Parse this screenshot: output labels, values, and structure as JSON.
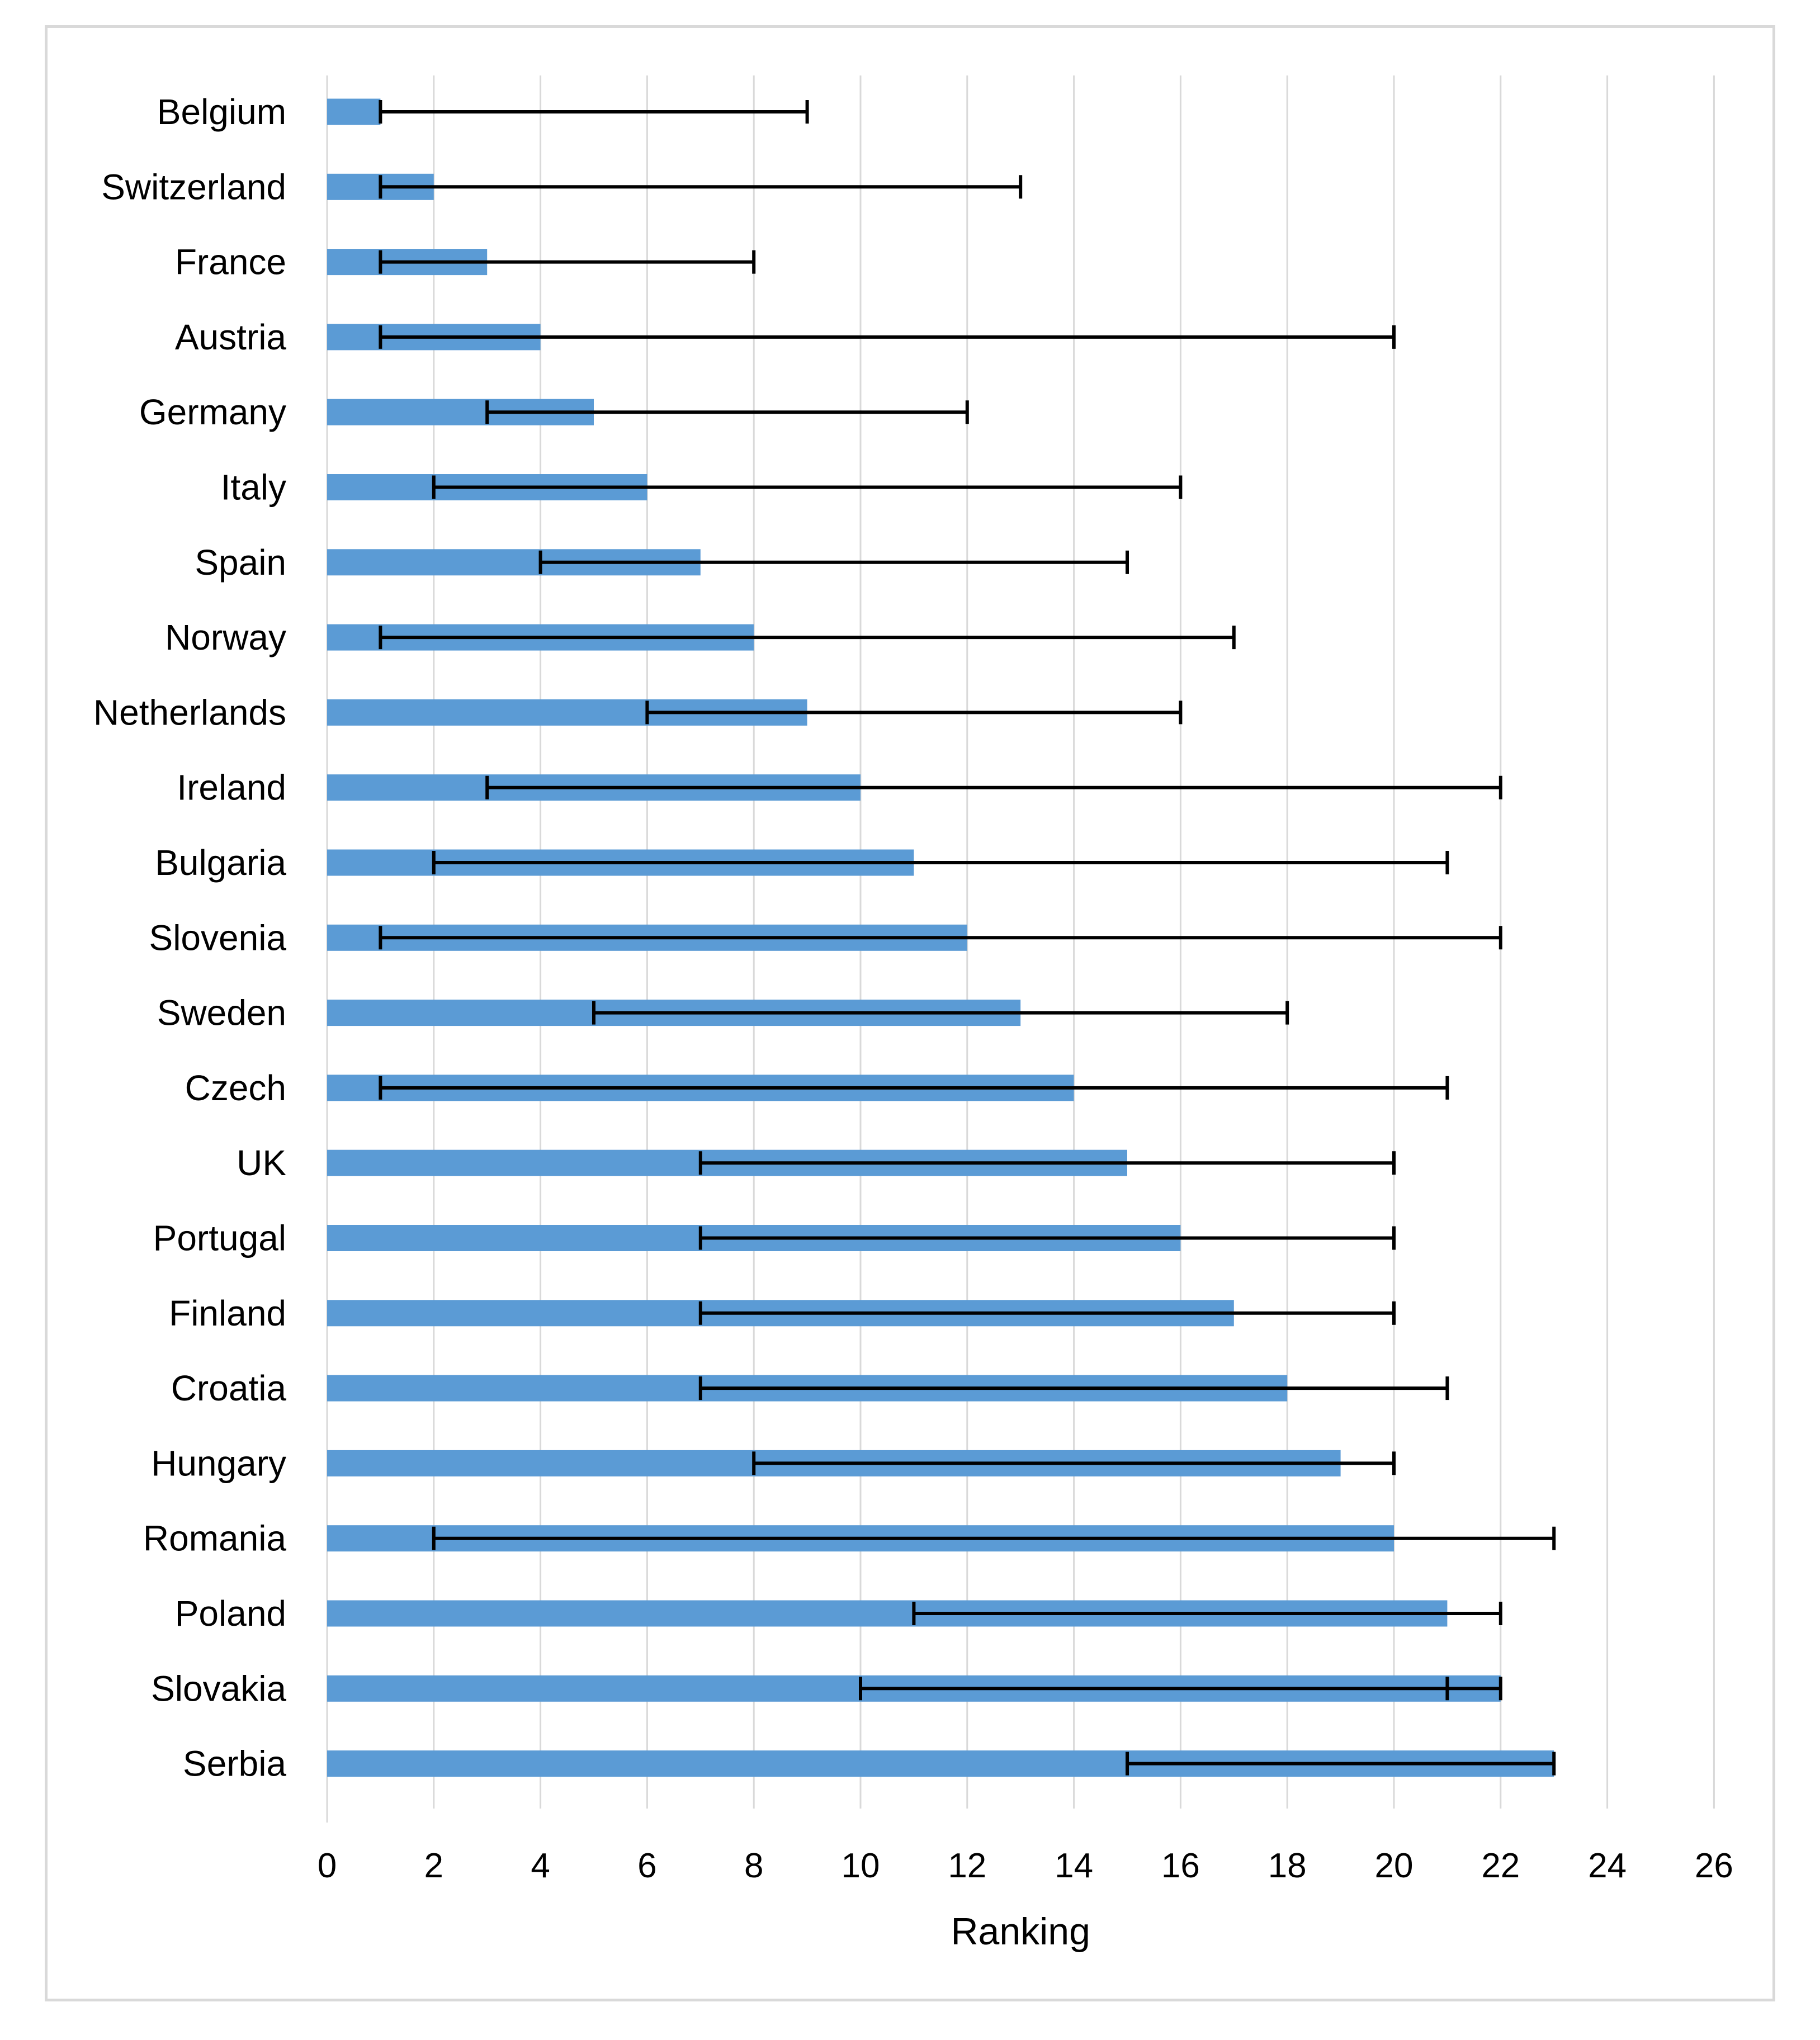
{
  "chart_data": {
    "type": "bar",
    "orientation": "horizontal",
    "title": "",
    "xlabel": "Ranking",
    "ylabel": "",
    "xlim": [
      0,
      26
    ],
    "x_ticks": [
      0,
      2,
      4,
      6,
      8,
      10,
      12,
      14,
      16,
      18,
      20,
      22,
      24,
      26
    ],
    "grid": true,
    "bar_color": "#5b9bd5",
    "error_bar_color": "#000000",
    "categories": [
      "Belgium",
      "Switzerland",
      "France",
      "Austria",
      "Germany",
      "Italy",
      "Spain",
      "Norway",
      "Netherlands",
      "Ireland",
      "Bulgaria",
      "Slovenia",
      "Sweden",
      "Czech",
      "UK",
      "Portugal",
      "Finland",
      "Croatia",
      "Hungary",
      "Romania",
      "Poland",
      "Slovakia",
      "Serbia"
    ],
    "values": [
      1,
      2,
      3,
      4,
      5,
      6,
      7,
      8,
      9,
      10,
      11,
      12,
      13,
      14,
      15,
      16,
      17,
      18,
      19,
      20,
      21,
      22,
      23
    ],
    "error_low": [
      1,
      1,
      1,
      1,
      3,
      2,
      4,
      1,
      6,
      3,
      2,
      1,
      5,
      1,
      7,
      7,
      7,
      7,
      8,
      2,
      11,
      10,
      15
    ],
    "error_high": [
      9,
      13,
      8,
      20,
      12,
      16,
      15,
      17,
      16,
      22,
      21,
      22,
      18,
      21,
      20,
      20,
      20,
      21,
      20,
      23,
      22,
      22,
      23
    ],
    "extra_markers": [
      {
        "category": "Slovakia",
        "value": 21
      }
    ]
  }
}
